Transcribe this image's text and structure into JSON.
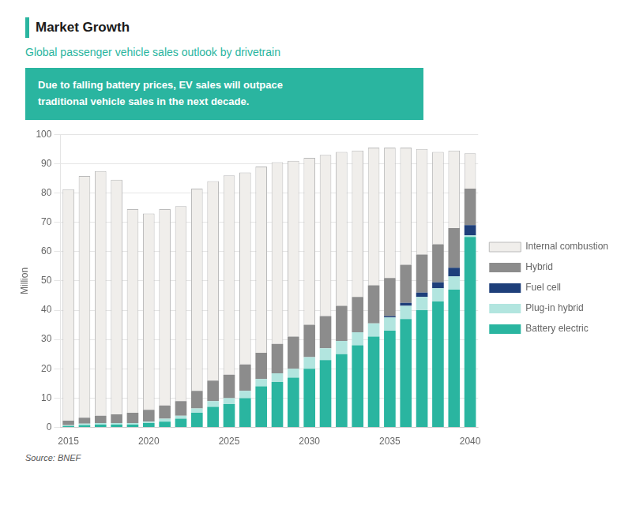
{
  "chart_data": {
    "type": "bar",
    "title": "Market Growth",
    "subtitle": "Global passenger vehicle sales outlook by drivetrain",
    "annotations": [
      "Due to falling battery prices, EV sales will outpace\ntraditional vehicle sales in the next decade.",
      "Source: BNEF"
    ],
    "ylabel": "Million",
    "categories": [
      "2015",
      null,
      null,
      null,
      null,
      "2020",
      null,
      null,
      null,
      null,
      "2025",
      null,
      null,
      null,
      null,
      "2030",
      null,
      null,
      null,
      null,
      "2035",
      null,
      null,
      null,
      null,
      "2040"
    ],
    "series": [
      {
        "name": "Battery electric",
        "color": "#2ab5a0",
        "values": [
          0.5,
          0.8,
          1.0,
          1.0,
          1.0,
          1.5,
          2.0,
          3.0,
          5.0,
          7.0,
          8.0,
          10.0,
          14.0,
          15.5,
          17.0,
          20.0,
          23.0,
          25.0,
          28.0,
          31.0,
          33.0,
          37.0,
          40.0,
          43.0,
          47.0,
          65.0
        ]
      },
      {
        "name": "Plug-in hybrid",
        "color": "#b2e5df",
        "values": [
          0.3,
          0.5,
          0.5,
          0.5,
          0.5,
          0.5,
          1.0,
          1.0,
          1.5,
          2.0,
          2.0,
          2.5,
          2.5,
          3.0,
          3.0,
          4.0,
          4.0,
          4.5,
          4.5,
          4.5,
          4.5,
          4.5,
          4.5,
          4.5,
          4.5,
          0.5
        ]
      },
      {
        "name": "Fuel cell",
        "color": "#1e3f7a",
        "values": [
          0.0,
          0.0,
          0.0,
          0.0,
          0.0,
          0.0,
          0.0,
          0.0,
          0.0,
          0.0,
          0.0,
          0.0,
          0.0,
          0.0,
          0.0,
          0.0,
          0.0,
          0.0,
          0.0,
          0.0,
          0.5,
          1.0,
          1.5,
          2.0,
          3.0,
          3.5
        ]
      },
      {
        "name": "Hybrid",
        "color": "#8c8c8c",
        "values": [
          1.5,
          2.0,
          2.5,
          3.0,
          3.5,
          4.0,
          4.5,
          5.0,
          6.0,
          7.0,
          8.0,
          9.0,
          9.0,
          10.0,
          11.0,
          11.0,
          11.0,
          12.0,
          12.0,
          13.0,
          13.0,
          13.0,
          13.0,
          13.0,
          13.5,
          12.5
        ]
      },
      {
        "name": "Internal combustion",
        "color": "#f0eeeb",
        "values": [
          79.0,
          82.5,
          83.5,
          80.0,
          69.5,
          67.0,
          67.0,
          66.5,
          69.0,
          68.0,
          68.0,
          65.5,
          63.5,
          62.0,
          60.0,
          57.0,
          55.0,
          52.5,
          50.0,
          47.0,
          44.5,
          40.0,
          36.0,
          31.5,
          26.5,
          12.0
        ]
      }
    ],
    "stacked": true,
    "ylim": [
      0,
      100
    ],
    "yticks": [
      0,
      10,
      20,
      30,
      40,
      50,
      60,
      70,
      80,
      90,
      100
    ],
    "grid": true,
    "legend": "right"
  }
}
